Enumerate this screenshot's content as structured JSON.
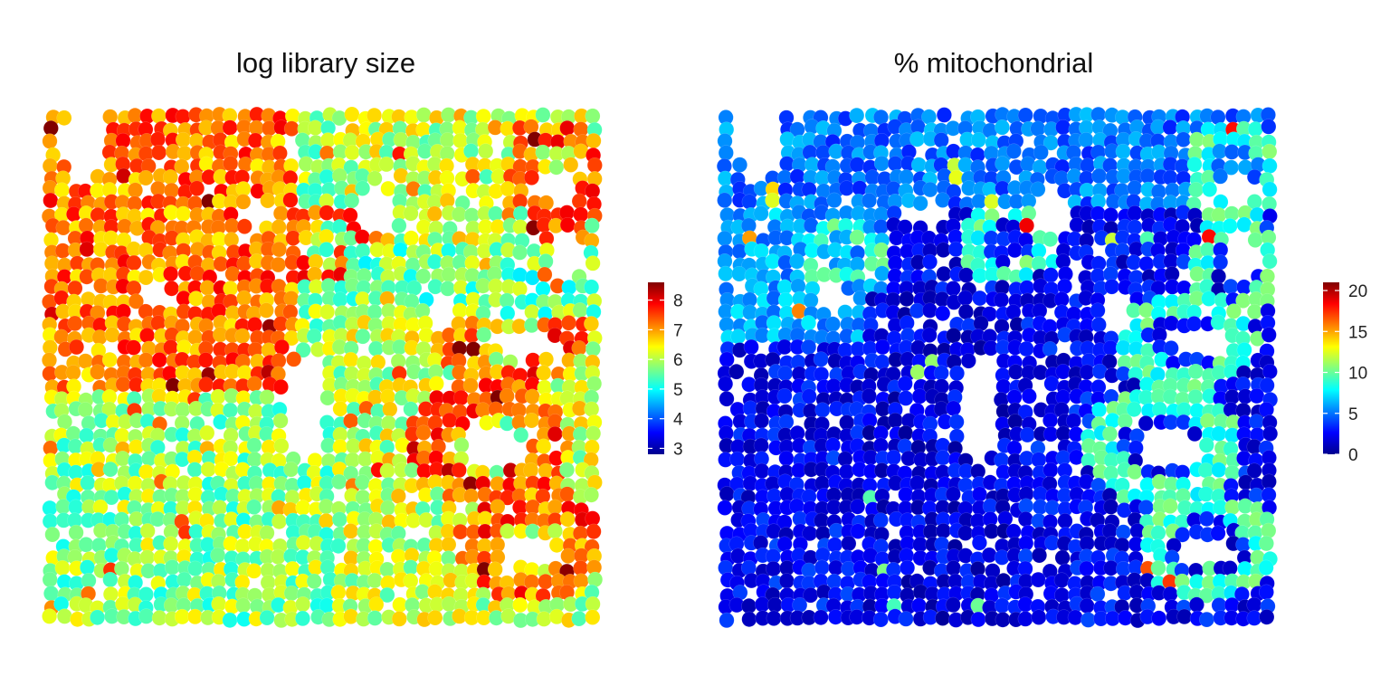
{
  "chart_data": [
    {
      "type": "heatmap",
      "title": "log library size",
      "colorbar": {
        "ticks": [
          3,
          4,
          5,
          6,
          7,
          8
        ],
        "range": [
          2.8,
          8.6
        ],
        "colors": [
          "#00008F",
          "#0000FF",
          "#0080FF",
          "#00FFFF",
          "#80FF80",
          "#FFFF00",
          "#FF8000",
          "#FF0000",
          "#800000"
        ]
      },
      "pattern": "high values (red) in upper-left and glandular rings on right; mid values (yellow-green) in lower-left tissue",
      "xlabel": "",
      "ylabel": ""
    },
    {
      "type": "heatmap",
      "title": "% mitochondrial",
      "colorbar": {
        "ticks": [
          0,
          5,
          10,
          15,
          20
        ],
        "range": [
          0,
          21
        ],
        "colors": [
          "#00008F",
          "#0000FF",
          "#0080FF",
          "#00FFFF",
          "#80FF80",
          "#FFFF00",
          "#FF8000",
          "#FF0000",
          "#800000"
        ]
      },
      "pattern": "mostly low (blue) with higher values (cyan-green) forming glandular rings on the right side",
      "xlabel": "",
      "ylabel": ""
    }
  ]
}
